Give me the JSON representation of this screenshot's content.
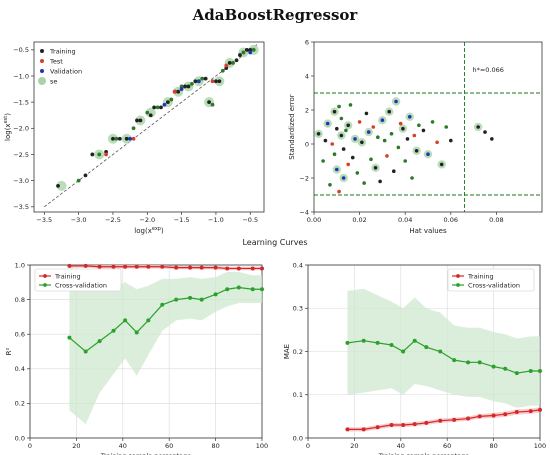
{
  "title": "AdaBoostRegressor",
  "subtitle": "Learning Curves",
  "colors": {
    "train": "#222222",
    "test": "#d6402b",
    "validation": "#2234b8",
    "se": "#a8d5a8",
    "point_green": "#2a7a2a",
    "red": "#d62728",
    "green": "#2ca02c",
    "band_red": "#f7b9b9",
    "band_green": "#cfe8cf",
    "guide": "#1a7a1a"
  },
  "chart_data": [
    {
      "type": "scatter",
      "title": "",
      "xlabel": "log(x^exp)",
      "ylabel": "log(x^est)",
      "x_base": "log(x",
      "x_sup": "exp",
      "y_base": "log(x",
      "y_sup": "est",
      "xlim": [
        -3.65,
        -0.3
      ],
      "ylim": [
        -3.6,
        -0.35
      ],
      "xticks": [
        -3.5,
        -3.0,
        -2.5,
        -2.0,
        -1.5,
        -1.0,
        -0.5
      ],
      "yticks": [
        -3.5,
        -3.0,
        -2.5,
        -2.0,
        -1.5,
        -1.0,
        -0.5
      ],
      "tick_labels_x": [
        "−3.5",
        "−3.0",
        "−2.5",
        "−2.0",
        "−1.5",
        "−1.0",
        "−0.5"
      ],
      "tick_labels_y": [
        "−3.5",
        "−3.0",
        "−2.5",
        "−2.0",
        "−1.5",
        "−1.0",
        "−0.5"
      ],
      "diagonal": [
        [
          -3.5,
          -3.5
        ],
        [
          -0.4,
          -0.4
        ]
      ],
      "legend": [
        "Training",
        "Test",
        "Validation",
        "se"
      ],
      "legend_position": "top-left",
      "series": [
        {
          "name": "Training",
          "points": [
            [
              -3.3,
              -3.1
            ],
            [
              -3.0,
              -3.0
            ],
            [
              -2.9,
              -2.9
            ],
            [
              -2.8,
              -2.5
            ],
            [
              -2.7,
              -2.5
            ],
            [
              -2.6,
              -2.45
            ],
            [
              -2.5,
              -2.2
            ],
            [
              -2.45,
              -2.2
            ],
            [
              -2.4,
              -2.2
            ],
            [
              -2.3,
              -2.2
            ],
            [
              -2.2,
              -2.0
            ],
            [
              -2.15,
              -1.85
            ],
            [
              -2.1,
              -1.85
            ],
            [
              -2.0,
              -1.7
            ],
            [
              -1.95,
              -1.75
            ],
            [
              -1.9,
              -1.6
            ],
            [
              -1.85,
              -1.6
            ],
            [
              -1.8,
              -1.6
            ],
            [
              -1.7,
              -1.5
            ],
            [
              -1.65,
              -1.45
            ],
            [
              -1.6,
              -1.3
            ],
            [
              -1.55,
              -1.3
            ],
            [
              -1.5,
              -1.2
            ],
            [
              -1.45,
              -1.2
            ],
            [
              -1.4,
              -1.2
            ],
            [
              -1.35,
              -1.15
            ],
            [
              -1.3,
              -1.1
            ],
            [
              -1.25,
              -1.1
            ],
            [
              -1.2,
              -1.05
            ],
            [
              -1.15,
              -1.05
            ],
            [
              -1.1,
              -1.5
            ],
            [
              -1.05,
              -1.55
            ],
            [
              -1.0,
              -1.1
            ],
            [
              -0.95,
              -1.1
            ],
            [
              -0.9,
              -0.9
            ],
            [
              -0.85,
              -0.85
            ],
            [
              -0.8,
              -0.75
            ],
            [
              -0.75,
              -0.75
            ],
            [
              -0.7,
              -0.7
            ],
            [
              -0.65,
              -0.6
            ],
            [
              -0.6,
              -0.55
            ],
            [
              -0.55,
              -0.5
            ],
            [
              -0.5,
              -0.5
            ],
            [
              -0.45,
              -0.5
            ]
          ]
        },
        {
          "name": "Test",
          "points": [
            [
              -2.6,
              -2.5
            ],
            [
              -2.2,
              -2.2
            ],
            [
              -1.6,
              -1.3
            ],
            [
              -1.05,
              -1.1
            ],
            [
              -0.85,
              -0.8
            ]
          ]
        },
        {
          "name": "Validation",
          "points": [
            [
              -2.25,
              -2.2
            ],
            [
              -1.75,
              -1.55
            ],
            [
              -1.5,
              -1.25
            ],
            [
              -1.25,
              -1.1
            ],
            [
              -0.5,
              -0.55
            ]
          ]
        },
        {
          "name": "se",
          "points": [
            [
              -3.25,
              -3.1
            ],
            [
              -2.7,
              -2.5
            ],
            [
              -2.5,
              -2.2
            ],
            [
              -2.3,
              -2.2
            ],
            [
              -2.1,
              -1.85
            ],
            [
              -1.95,
              -1.7
            ],
            [
              -1.7,
              -1.5
            ],
            [
              -1.55,
              -1.3
            ],
            [
              -1.4,
              -1.2
            ],
            [
              -1.25,
              -1.1
            ],
            [
              -1.1,
              -1.5
            ],
            [
              -0.95,
              -1.1
            ],
            [
              -0.8,
              -0.75
            ],
            [
              -0.6,
              -0.55
            ],
            [
              -0.45,
              -0.5
            ]
          ]
        }
      ]
    },
    {
      "type": "scatter",
      "title": "",
      "xlabel": "Hat values",
      "ylabel": "Standardized error",
      "xlim": [
        0.0,
        0.1
      ],
      "ylim": [
        -4,
        6
      ],
      "xticks": [
        0.0,
        0.02,
        0.04,
        0.06,
        0.08
      ],
      "yticks": [
        -4,
        -2,
        0,
        2,
        4,
        6
      ],
      "tick_labels_x": [
        "0.00",
        "0.02",
        "0.04",
        "0.06",
        "0.08"
      ],
      "tick_labels_y": [
        "−4",
        "−2",
        "0",
        "2",
        "4",
        "6"
      ],
      "h_star": 0.066,
      "h_star_label": "h*=0.066",
      "h_lines": [
        3,
        -3
      ],
      "v_line": 0.066,
      "series": [
        {
          "name": "points",
          "points": [
            [
              0.002,
              0.6
            ],
            [
              0.004,
              -1.0
            ],
            [
              0.005,
              0.2
            ],
            [
              0.006,
              1.2
            ],
            [
              0.007,
              -2.4
            ],
            [
              0.008,
              0.0
            ],
            [
              0.009,
              1.9
            ],
            [
              0.009,
              -0.6
            ],
            [
              0.01,
              0.9
            ],
            [
              0.01,
              -1.5
            ],
            [
              0.011,
              2.2
            ],
            [
              0.011,
              -2.8
            ],
            [
              0.012,
              0.5
            ],
            [
              0.012,
              1.5
            ],
            [
              0.013,
              -0.3
            ],
            [
              0.013,
              -2.0
            ],
            [
              0.014,
              0.8
            ],
            [
              0.015,
              -1.2
            ],
            [
              0.015,
              1.1
            ],
            [
              0.016,
              2.3
            ],
            [
              0.017,
              -0.8
            ],
            [
              0.018,
              0.3
            ],
            [
              0.019,
              -1.7
            ],
            [
              0.02,
              1.3
            ],
            [
              0.021,
              0.1
            ],
            [
              0.022,
              -2.3
            ],
            [
              0.023,
              1.8
            ],
            [
              0.024,
              0.7
            ],
            [
              0.025,
              -0.9
            ],
            [
              0.026,
              1.0
            ],
            [
              0.027,
              -1.4
            ],
            [
              0.028,
              0.4
            ],
            [
              0.029,
              -2.2
            ],
            [
              0.03,
              1.4
            ],
            [
              0.031,
              0.2
            ],
            [
              0.032,
              -0.7
            ],
            [
              0.033,
              1.9
            ],
            [
              0.034,
              0.6
            ],
            [
              0.035,
              -1.6
            ],
            [
              0.036,
              2.5
            ],
            [
              0.037,
              -0.2
            ],
            [
              0.038,
              1.2
            ],
            [
              0.039,
              0.9
            ],
            [
              0.04,
              -1.0
            ],
            [
              0.041,
              0.3
            ],
            [
              0.042,
              1.6
            ],
            [
              0.043,
              -2.0
            ],
            [
              0.044,
              0.5
            ],
            [
              0.045,
              -0.4
            ],
            [
              0.046,
              1.1
            ],
            [
              0.048,
              0.8
            ],
            [
              0.05,
              -0.6
            ],
            [
              0.052,
              1.3
            ],
            [
              0.054,
              0.1
            ],
            [
              0.056,
              -1.2
            ],
            [
              0.058,
              1.0
            ],
            [
              0.06,
              0.2
            ],
            [
              0.072,
              1.0
            ],
            [
              0.075,
              0.7
            ],
            [
              0.078,
              0.3
            ]
          ]
        }
      ]
    },
    {
      "type": "line",
      "title": "",
      "xlabel": "Training sample percentage",
      "ylabel": "R²",
      "xlim": [
        0,
        100
      ],
      "ylim": [
        0.0,
        1.0
      ],
      "xticks": [
        0,
        20,
        40,
        60,
        80,
        100
      ],
      "yticks": [
        0.0,
        0.2,
        0.4,
        0.6,
        0.8,
        1.0
      ],
      "tick_labels_x": [
        "0",
        "20",
        "40",
        "60",
        "80",
        "100"
      ],
      "tick_labels_y": [
        "0.0",
        "0.2",
        "0.4",
        "0.6",
        "0.8",
        "1.0"
      ],
      "legend_position": "top-left",
      "x": [
        17,
        24,
        30,
        36,
        41,
        46,
        51,
        57,
        63,
        69,
        74,
        80,
        85,
        90,
        96,
        100
      ],
      "series": [
        {
          "name": "Training",
          "values": [
            0.995,
            0.995,
            0.99,
            0.99,
            0.99,
            0.99,
            0.99,
            0.99,
            0.985,
            0.985,
            0.985,
            0.985,
            0.98,
            0.98,
            0.98,
            0.98
          ],
          "band": [
            0.01,
            0.01,
            0.01,
            0.01,
            0.01,
            0.01,
            0.01,
            0.01,
            0.01,
            0.01,
            0.01,
            0.01,
            0.01,
            0.01,
            0.01,
            0.01
          ]
        },
        {
          "name": "Cross-validation",
          "values": [
            0.58,
            0.5,
            0.56,
            0.62,
            0.68,
            0.61,
            0.68,
            0.77,
            0.8,
            0.81,
            0.8,
            0.83,
            0.86,
            0.87,
            0.86,
            0.86
          ],
          "band": [
            0.42,
            0.42,
            0.3,
            0.25,
            0.22,
            0.25,
            0.2,
            0.15,
            0.12,
            0.12,
            0.12,
            0.1,
            0.1,
            0.09,
            0.08,
            0.08
          ]
        }
      ]
    },
    {
      "type": "line",
      "title": "",
      "xlabel": "Training sample percentage",
      "ylabel": "MAE",
      "xlim": [
        0,
        100
      ],
      "ylim": [
        0.0,
        0.4
      ],
      "xticks": [
        0,
        20,
        40,
        60,
        80,
        100
      ],
      "yticks": [
        0.0,
        0.1,
        0.2,
        0.3,
        0.4
      ],
      "tick_labels_x": [
        "0",
        "20",
        "40",
        "60",
        "80",
        "100"
      ],
      "tick_labels_y": [
        "0.0",
        "0.1",
        "0.2",
        "0.3",
        "0.4"
      ],
      "legend_position": "top-right",
      "x": [
        17,
        24,
        30,
        36,
        41,
        46,
        51,
        57,
        63,
        69,
        74,
        80,
        85,
        90,
        96,
        100
      ],
      "series": [
        {
          "name": "Training",
          "values": [
            0.02,
            0.02,
            0.025,
            0.03,
            0.03,
            0.032,
            0.035,
            0.04,
            0.042,
            0.045,
            0.05,
            0.052,
            0.055,
            0.06,
            0.062,
            0.065
          ],
          "band": [
            0.005,
            0.005,
            0.005,
            0.005,
            0.005,
            0.005,
            0.005,
            0.005,
            0.005,
            0.005,
            0.005,
            0.006,
            0.006,
            0.006,
            0.006,
            0.006
          ]
        },
        {
          "name": "Cross-validation",
          "values": [
            0.22,
            0.225,
            0.22,
            0.215,
            0.2,
            0.225,
            0.21,
            0.2,
            0.18,
            0.175,
            0.175,
            0.165,
            0.16,
            0.15,
            0.155,
            0.155
          ],
          "band": [
            0.12,
            0.12,
            0.11,
            0.1,
            0.1,
            0.1,
            0.09,
            0.09,
            0.08,
            0.08,
            0.08,
            0.08,
            0.08,
            0.08,
            0.08,
            0.08
          ]
        }
      ]
    }
  ]
}
